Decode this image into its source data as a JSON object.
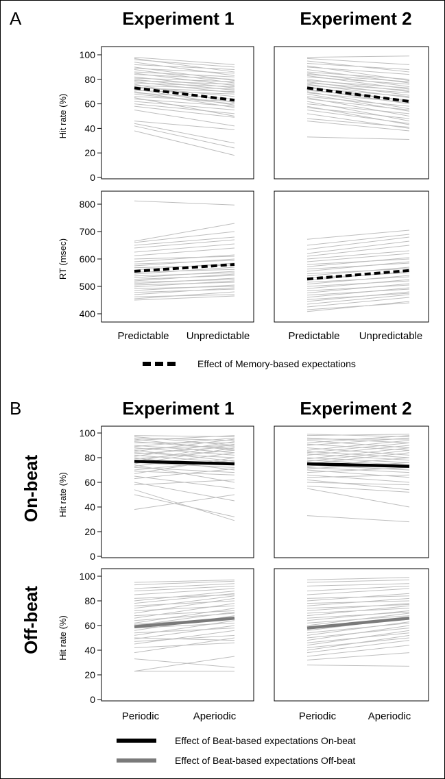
{
  "panels": {
    "A": {
      "label": "A",
      "titles": [
        "Experiment 1",
        "Experiment 2"
      ],
      "x_categories": [
        "Predictable",
        "Unpredictable"
      ],
      "legend": "Effect of Memory-based expectations"
    },
    "B": {
      "label": "B",
      "titles": [
        "Experiment 1",
        "Experiment 2"
      ],
      "row_titles": [
        "On-beat",
        "Off-beat"
      ],
      "x_categories": [
        "Periodic",
        "Aperiodic"
      ],
      "legend": [
        "Effect of Beat-based expectations On-beat",
        "Effect of Beat-based expectations Off-beat"
      ]
    }
  },
  "colors": {
    "individual": "#bdbdbd",
    "effect_onbeat": "#000000",
    "effect_offbeat": "#7a7a7a",
    "effect_memory": "#000000"
  },
  "chart_data": [
    {
      "type": "line",
      "panel": "A",
      "experiment": "Experiment 1",
      "xlabel": "",
      "ylabel": "Hit rate (%)",
      "ylim": [
        0,
        100
      ],
      "yticks": [
        0,
        20,
        40,
        60,
        80,
        100
      ],
      "categories": [
        "Predictable",
        "Unpredictable"
      ],
      "mean": [
        73,
        63
      ],
      "mean_style": "dashed",
      "subjects": [
        [
          38,
          18
        ],
        [
          42,
          24
        ],
        [
          44,
          28
        ],
        [
          46,
          39
        ],
        [
          55,
          42
        ],
        [
          58,
          49
        ],
        [
          60,
          52
        ],
        [
          62,
          55
        ],
        [
          64,
          58
        ],
        [
          65,
          50
        ],
        [
          66,
          62
        ],
        [
          68,
          60
        ],
        [
          69,
          64
        ],
        [
          70,
          57
        ],
        [
          71,
          68
        ],
        [
          72,
          59
        ],
        [
          73,
          70
        ],
        [
          74,
          66
        ],
        [
          75,
          72
        ],
        [
          76,
          61
        ],
        [
          77,
          74
        ],
        [
          78,
          69
        ],
        [
          79,
          76
        ],
        [
          80,
          71
        ],
        [
          81,
          78
        ],
        [
          82,
          73
        ],
        [
          84,
          80
        ],
        [
          85,
          75
        ],
        [
          86,
          82
        ],
        [
          88,
          77
        ],
        [
          89,
          85
        ],
        [
          90,
          79
        ],
        [
          92,
          88
        ],
        [
          94,
          83
        ],
        [
          96,
          90
        ],
        [
          97,
          86
        ],
        [
          98,
          92
        ]
      ]
    },
    {
      "type": "line",
      "panel": "A",
      "experiment": "Experiment 2",
      "xlabel": "",
      "ylabel": "",
      "ylim": [
        0,
        100
      ],
      "yticks": [
        0,
        20,
        40,
        60,
        80,
        100
      ],
      "categories": [
        "Predictable",
        "Unpredictable"
      ],
      "mean": [
        73,
        62
      ],
      "mean_style": "dashed",
      "subjects": [
        [
          33,
          31
        ],
        [
          46,
          38
        ],
        [
          48,
          41
        ],
        [
          52,
          40
        ],
        [
          55,
          44
        ],
        [
          57,
          48
        ],
        [
          58,
          43
        ],
        [
          60,
          52
        ],
        [
          62,
          46
        ],
        [
          64,
          55
        ],
        [
          65,
          50
        ],
        [
          66,
          58
        ],
        [
          68,
          54
        ],
        [
          69,
          61
        ],
        [
          70,
          56
        ],
        [
          71,
          63
        ],
        [
          72,
          60
        ],
        [
          73,
          66
        ],
        [
          74,
          62
        ],
        [
          75,
          69
        ],
        [
          76,
          65
        ],
        [
          77,
          71
        ],
        [
          78,
          67
        ],
        [
          79,
          73
        ],
        [
          80,
          70
        ],
        [
          82,
          76
        ],
        [
          83,
          72
        ],
        [
          84,
          78
        ],
        [
          85,
          74
        ],
        [
          86,
          80
        ],
        [
          88,
          77
        ],
        [
          90,
          84
        ],
        [
          91,
          79
        ],
        [
          93,
          88
        ],
        [
          95,
          86
        ],
        [
          97,
          92
        ],
        [
          98,
          99
        ]
      ]
    },
    {
      "type": "line",
      "panel": "A",
      "experiment": "Experiment 1",
      "xlabel": "",
      "ylabel": "RT (msec)",
      "ylim": [
        380,
        830
      ],
      "yticks": [
        400,
        500,
        600,
        700,
        800
      ],
      "categories": [
        "Predictable",
        "Unpredictable"
      ],
      "mean": [
        555,
        580
      ],
      "mean_style": "dashed",
      "subjects": [
        [
          450,
          465
        ],
        [
          455,
          480
        ],
        [
          462,
          470
        ],
        [
          470,
          495
        ],
        [
          478,
          490
        ],
        [
          485,
          505
        ],
        [
          492,
          500
        ],
        [
          498,
          520
        ],
        [
          505,
          515
        ],
        [
          510,
          530
        ],
        [
          515,
          525
        ],
        [
          520,
          545
        ],
        [
          526,
          540
        ],
        [
          532,
          555
        ],
        [
          538,
          550
        ],
        [
          545,
          570
        ],
        [
          552,
          562
        ],
        [
          560,
          585
        ],
        [
          568,
          578
        ],
        [
          575,
          600
        ],
        [
          582,
          595
        ],
        [
          590,
          615
        ],
        [
          600,
          610
        ],
        [
          612,
          640
        ],
        [
          625,
          655
        ],
        [
          640,
          670
        ],
        [
          650,
          680
        ],
        [
          660,
          700
        ],
        [
          665,
          730
        ],
        [
          812,
          797
        ]
      ]
    },
    {
      "type": "line",
      "panel": "A",
      "experiment": "Experiment 2",
      "xlabel": "",
      "ylabel": "",
      "ylim": [
        380,
        830
      ],
      "yticks": [
        400,
        500,
        600,
        700,
        800
      ],
      "categories": [
        "Predictable",
        "Unpredictable"
      ],
      "mean": [
        527,
        558
      ],
      "mean_style": "dashed",
      "subjects": [
        [
          408,
          445
        ],
        [
          415,
          440
        ],
        [
          425,
          460
        ],
        [
          435,
          470
        ],
        [
          445,
          480
        ],
        [
          452,
          475
        ],
        [
          460,
          495
        ],
        [
          468,
          490
        ],
        [
          476,
          510
        ],
        [
          484,
          505
        ],
        [
          492,
          525
        ],
        [
          500,
          520
        ],
        [
          508,
          540
        ],
        [
          515,
          535
        ],
        [
          522,
          555
        ],
        [
          530,
          550
        ],
        [
          538,
          570
        ],
        [
          546,
          565
        ],
        [
          555,
          590
        ],
        [
          563,
          585
        ],
        [
          572,
          605
        ],
        [
          580,
          600
        ],
        [
          590,
          620
        ],
        [
          600,
          630
        ],
        [
          610,
          650
        ],
        [
          620,
          665
        ],
        [
          635,
          680
        ],
        [
          650,
          690
        ],
        [
          672,
          705
        ]
      ]
    },
    {
      "type": "line",
      "panel": "B",
      "experiment": "Experiment 1",
      "row": "On-beat",
      "xlabel": "",
      "ylabel": "Hit rate (%)",
      "ylim": [
        0,
        100
      ],
      "yticks": [
        0,
        20,
        40,
        60,
        80,
        100
      ],
      "categories": [
        "Periodic",
        "Aperiodic"
      ],
      "mean": [
        77,
        75
      ],
      "mean_style": "solid-black",
      "subjects": [
        [
          38,
          50
        ],
        [
          50,
          32
        ],
        [
          54,
          29
        ],
        [
          58,
          62
        ],
        [
          60,
          45
        ],
        [
          63,
          71
        ],
        [
          65,
          55
        ],
        [
          67,
          80
        ],
        [
          69,
          66
        ],
        [
          70,
          78
        ],
        [
          72,
          68
        ],
        [
          73,
          84
        ],
        [
          74,
          60
        ],
        [
          75,
          88
        ],
        [
          76,
          72
        ],
        [
          77,
          91
        ],
        [
          78,
          74
        ],
        [
          79,
          86
        ],
        [
          80,
          70
        ],
        [
          81,
          93
        ],
        [
          82,
          76
        ],
        [
          83,
          89
        ],
        [
          84,
          80
        ],
        [
          85,
          95
        ],
        [
          86,
          77
        ],
        [
          87,
          90
        ],
        [
          88,
          82
        ],
        [
          89,
          96
        ],
        [
          90,
          84
        ],
        [
          92,
          92
        ],
        [
          93,
          87
        ],
        [
          94,
          98
        ],
        [
          95,
          86
        ],
        [
          96,
          94
        ],
        [
          97,
          90
        ],
        [
          98,
          97
        ]
      ]
    },
    {
      "type": "line",
      "panel": "B",
      "experiment": "Experiment 2",
      "row": "On-beat",
      "xlabel": "",
      "ylabel": "",
      "ylim": [
        0,
        100
      ],
      "yticks": [
        0,
        20,
        40,
        60,
        80,
        100
      ],
      "categories": [
        "Periodic",
        "Aperiodic"
      ],
      "mean": [
        75,
        73
      ],
      "mean_style": "solid-black",
      "subjects": [
        [
          33,
          28
        ],
        [
          55,
          40
        ],
        [
          57,
          52
        ],
        [
          60,
          58
        ],
        [
          62,
          54
        ],
        [
          64,
          66
        ],
        [
          66,
          60
        ],
        [
          68,
          72
        ],
        [
          70,
          64
        ],
        [
          71,
          76
        ],
        [
          72,
          68
        ],
        [
          73,
          80
        ],
        [
          74,
          70
        ],
        [
          75,
          84
        ],
        [
          76,
          72
        ],
        [
          77,
          86
        ],
        [
          78,
          74
        ],
        [
          79,
          88
        ],
        [
          80,
          76
        ],
        [
          82,
          90
        ],
        [
          83,
          78
        ],
        [
          84,
          92
        ],
        [
          85,
          80
        ],
        [
          86,
          94
        ],
        [
          88,
          82
        ],
        [
          90,
          96
        ],
        [
          91,
          86
        ],
        [
          92,
          98
        ],
        [
          94,
          88
        ],
        [
          95,
          95
        ],
        [
          96,
          92
        ],
        [
          98,
          99
        ],
        [
          99,
          97
        ]
      ]
    },
    {
      "type": "line",
      "panel": "B",
      "experiment": "Experiment 1",
      "row": "Off-beat",
      "xlabel": "",
      "ylabel": "Hit rate (%)",
      "ylim": [
        0,
        100
      ],
      "yticks": [
        0,
        20,
        40,
        60,
        80,
        100
      ],
      "categories": [
        "Periodic",
        "Aperiodic"
      ],
      "mean": [
        59,
        66
      ],
      "mean_style": "solid-gray",
      "subjects": [
        [
          23,
          23
        ],
        [
          23,
          35
        ],
        [
          33,
          26
        ],
        [
          38,
          50
        ],
        [
          42,
          46
        ],
        [
          45,
          56
        ],
        [
          47,
          52
        ],
        [
          49,
          60
        ],
        [
          50,
          48
        ],
        [
          52,
          64
        ],
        [
          54,
          58
        ],
        [
          56,
          68
        ],
        [
          58,
          62
        ],
        [
          60,
          71
        ],
        [
          61,
          66
        ],
        [
          62,
          74
        ],
        [
          64,
          70
        ],
        [
          66,
          78
        ],
        [
          68,
          72
        ],
        [
          70,
          82
        ],
        [
          72,
          76
        ],
        [
          74,
          84
        ],
        [
          76,
          80
        ],
        [
          78,
          86
        ],
        [
          80,
          88
        ],
        [
          82,
          85
        ],
        [
          85,
          90
        ],
        [
          88,
          92
        ],
        [
          90,
          94
        ],
        [
          93,
          96
        ],
        [
          95,
          97
        ]
      ]
    },
    {
      "type": "line",
      "panel": "B",
      "experiment": "Experiment 2",
      "row": "Off-beat",
      "xlabel": "",
      "ylabel": "",
      "ylim": [
        0,
        100
      ],
      "yticks": [
        0,
        20,
        40,
        60,
        80,
        100
      ],
      "categories": [
        "Periodic",
        "Aperiodic"
      ],
      "mean": [
        58,
        66
      ],
      "mean_style": "solid-gray",
      "subjects": [
        [
          28,
          27
        ],
        [
          32,
          38
        ],
        [
          35,
          44
        ],
        [
          38,
          48
        ],
        [
          40,
          52
        ],
        [
          42,
          50
        ],
        [
          44,
          56
        ],
        [
          46,
          54
        ],
        [
          48,
          60
        ],
        [
          50,
          58
        ],
        [
          52,
          63
        ],
        [
          54,
          62
        ],
        [
          56,
          66
        ],
        [
          58,
          65
        ],
        [
          60,
          70
        ],
        [
          62,
          68
        ],
        [
          64,
          72
        ],
        [
          66,
          71
        ],
        [
          68,
          76
        ],
        [
          70,
          74
        ],
        [
          72,
          78
        ],
        [
          74,
          77
        ],
        [
          76,
          82
        ],
        [
          78,
          80
        ],
        [
          80,
          86
        ],
        [
          82,
          84
        ],
        [
          85,
          90
        ],
        [
          88,
          92
        ],
        [
          92,
          94
        ],
        [
          95,
          97
        ],
        [
          97,
          99
        ]
      ]
    }
  ]
}
